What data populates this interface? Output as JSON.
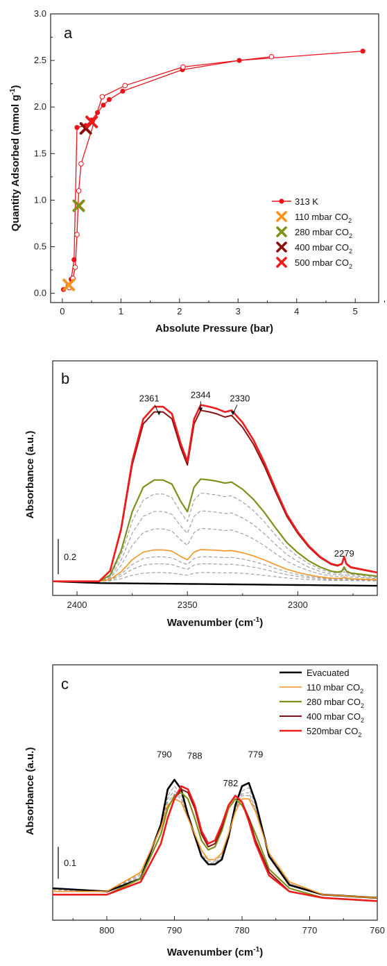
{
  "chart_data": [
    {
      "panel": "a",
      "type": "scatter",
      "xlabel": "Absolute Pressure (bar)",
      "ylabel_main": "Quantity Adsorbed (mmol g",
      "ylabel_sup": "-1",
      "ylabel_end": ")",
      "xlim": [
        -0.2,
        5.4
      ],
      "ylim": [
        -0.1,
        3.0
      ],
      "xticks": [
        "0",
        "1",
        "2",
        "3",
        "4",
        "5"
      ],
      "yticks": [
        "0.0",
        "0.5",
        "1.0",
        "1.5",
        "2.0",
        "2.5",
        "3.0"
      ],
      "legend_position": "bottom-right",
      "series": [
        {
          "name": "313 K",
          "role": "adsorption",
          "color": "#e8141b",
          "marker": "filled-circle",
          "x": [
            0.02,
            0.1,
            0.15,
            0.2,
            0.25,
            0.4,
            0.5,
            0.6,
            0.7,
            0.8,
            1.03,
            2.05,
            3.02,
            5.13
          ],
          "y": [
            0.04,
            0.08,
            0.15,
            0.36,
            1.78,
            1.8,
            1.86,
            1.94,
            2.02,
            2.08,
            2.17,
            2.4,
            2.5,
            2.6
          ]
        },
        {
          "role": "desorption",
          "color": "#e8141b",
          "marker": "open-circle",
          "x": [
            3.57,
            2.06,
            1.07,
            0.68,
            0.32,
            0.28,
            0.25,
            0.22,
            0.18,
            0.12
          ],
          "y": [
            2.54,
            2.43,
            2.23,
            2.11,
            1.39,
            1.1,
            0.63,
            0.28,
            0.16,
            0.06
          ]
        },
        {
          "name": "110 mbar CO2",
          "color": "#f7931e",
          "x": [
            0.11
          ],
          "y": [
            0.09
          ]
        },
        {
          "name": "280 mbar CO2",
          "color": "#7f8f1a",
          "x": [
            0.28
          ],
          "y": [
            0.94
          ]
        },
        {
          "name": "400 mbar CO2",
          "color": "#8b1010",
          "x": [
            0.4
          ],
          "y": [
            1.77
          ]
        },
        {
          "name": "500 mbar CO2",
          "color": "#ee1c1c",
          "x": [
            0.5
          ],
          "y": [
            1.84
          ]
        }
      ],
      "legend": [
        {
          "label": "313 K",
          "sub": "",
          "color": "#e8141b",
          "kind": "line-dot"
        },
        {
          "label": "110 mbar CO",
          "sub": "2",
          "color": "#f7931e",
          "kind": "cross"
        },
        {
          "label": "280 mbar CO",
          "sub": "2",
          "color": "#7f8f1a",
          "kind": "cross"
        },
        {
          "label": "400 mbar CO",
          "sub": "2",
          "color": "#8b1010",
          "kind": "cross"
        },
        {
          "label": "500 mbar CO",
          "sub": "2",
          "color": "#ee1c1c",
          "kind": "cross"
        }
      ]
    },
    {
      "panel": "b",
      "type": "line",
      "xlabel_main": "Wavenumber (cm",
      "xlabel_sup": "-1",
      "xlabel_end": ")",
      "ylabel": "Absorbance (a.u.)",
      "xlim": [
        2411,
        2264
      ],
      "ylim": [
        -0.08,
        1.25
      ],
      "xticks": [
        2400,
        2350,
        2300
      ],
      "scale_bar": {
        "value": 0.2,
        "label": "0.2"
      },
      "annotations": [
        {
          "text": "2361",
          "x": 2361,
          "y": 1.02
        },
        {
          "text": "2344",
          "x": 2344,
          "y": 1.04
        },
        {
          "text": "2330",
          "x": 2330,
          "y": 1.02
        },
        {
          "text": "2279",
          "x": 2279,
          "y": 0.14
        }
      ],
      "shape_x": [
        2411,
        2390,
        2385,
        2380,
        2375,
        2370,
        2365,
        2361,
        2357,
        2353,
        2350,
        2347,
        2344,
        2340,
        2337,
        2333,
        2330,
        2325,
        2320,
        2315,
        2310,
        2305,
        2300,
        2295,
        2290,
        2285,
        2282,
        2280,
        2279,
        2278,
        2276,
        2272,
        2268,
        2264
      ],
      "shape_y": [
        0.0,
        0.0,
        0.06,
        0.3,
        0.68,
        0.92,
        0.99,
        0.99,
        0.95,
        0.78,
        0.68,
        0.92,
        1.0,
        0.99,
        0.98,
        0.96,
        0.97,
        0.9,
        0.8,
        0.67,
        0.52,
        0.38,
        0.28,
        0.2,
        0.14,
        0.1,
        0.09,
        0.1,
        0.14,
        0.1,
        0.08,
        0.07,
        0.06,
        0.05
      ],
      "series": [
        {
          "name": "Evacuated",
          "color": "#000000",
          "width": 2.4,
          "scale": 0.0,
          "dashed": false
        },
        {
          "name": "110 mbar CO2",
          "color": "#f7931e",
          "width": 1.6,
          "scale": 0.18,
          "dashed": false
        },
        {
          "name": "280 mbar CO2",
          "color": "#7f8f1a",
          "width": 2.2,
          "scale": 0.58,
          "dashed": false
        },
        {
          "name": "400 mbar CO2",
          "color": "#8b1010",
          "width": 2.0,
          "scale": 0.97,
          "dashed": false
        },
        {
          "name": "520mbar CO2",
          "color": "#ee1c1c",
          "width": 2.6,
          "scale": 1.0,
          "dashed": false
        },
        {
          "color": "#999999",
          "width": 1.1,
          "scale": 0.05,
          "dashed": true
        },
        {
          "color": "#999999",
          "width": 1.1,
          "scale": 0.1,
          "dashed": true
        },
        {
          "color": "#999999",
          "width": 1.1,
          "scale": 0.14,
          "dashed": true
        },
        {
          "color": "#999999",
          "width": 1.1,
          "scale": 0.3,
          "dashed": true
        },
        {
          "color": "#999999",
          "width": 1.1,
          "scale": 0.4,
          "dashed": true
        },
        {
          "color": "#999999",
          "width": 1.1,
          "scale": 0.5,
          "dashed": true
        }
      ]
    },
    {
      "panel": "c",
      "type": "line",
      "xlabel_main": "Wavenumber (cm",
      "xlabel_sup": "-1",
      "xlabel_end": ")",
      "ylabel": "Absorbance (a.u.)",
      "xlim": [
        808,
        760
      ],
      "ylim": [
        -0.05,
        0.75
      ],
      "xticks": [
        800,
        790,
        780,
        770,
        760
      ],
      "scale_bar": {
        "value": 0.1,
        "label": "0.1"
      },
      "annotations": [
        {
          "text": "790",
          "x": 791.5,
          "y": 0.46
        },
        {
          "text": "788",
          "x": 787.0,
          "y": 0.455
        },
        {
          "text": "782",
          "x": 781.7,
          "y": 0.37
        },
        {
          "text": "779",
          "x": 778.0,
          "y": 0.46
        }
      ],
      "series": [
        {
          "name": "Evacuated",
          "color": "#000000",
          "width": 2.6,
          "x": [
            808,
            800,
            795,
            792,
            791,
            790,
            789,
            788,
            786,
            785,
            784,
            783,
            782,
            781,
            780,
            779,
            778,
            776,
            773,
            768,
            760
          ],
          "y": [
            0.05,
            0.04,
            0.08,
            0.25,
            0.36,
            0.39,
            0.36,
            0.28,
            0.15,
            0.125,
            0.125,
            0.14,
            0.21,
            0.31,
            0.37,
            0.38,
            0.32,
            0.15,
            0.06,
            0.03,
            0.02
          ]
        },
        {
          "name": "110 mbar CO2",
          "color": "#f7931e",
          "width": 1.6,
          "x": [
            808,
            800,
            795,
            792,
            791,
            790,
            789,
            788,
            786,
            785,
            784,
            783,
            782,
            781,
            780,
            779,
            778,
            776,
            773,
            768,
            760
          ],
          "y": [
            0.04,
            0.04,
            0.1,
            0.24,
            0.31,
            0.33,
            0.32,
            0.27,
            0.17,
            0.14,
            0.14,
            0.16,
            0.22,
            0.29,
            0.33,
            0.33,
            0.29,
            0.16,
            0.07,
            0.03,
            0.02
          ]
        },
        {
          "name": "280 mbar CO2",
          "color": "#7f8f1a",
          "width": 2.2,
          "x": [
            808,
            800,
            795,
            792,
            791,
            790,
            789,
            788,
            787,
            786,
            785,
            784,
            783,
            782,
            781,
            780,
            779,
            778,
            776,
            773,
            768,
            760
          ],
          "y": [
            0.03,
            0.03,
            0.08,
            0.22,
            0.3,
            0.34,
            0.35,
            0.33,
            0.27,
            0.2,
            0.17,
            0.18,
            0.23,
            0.3,
            0.33,
            0.31,
            0.27,
            0.22,
            0.11,
            0.05,
            0.02,
            0.01
          ]
        },
        {
          "name": "400 mbar CO2",
          "color": "#8b1010",
          "width": 2.0,
          "x": [
            808,
            800,
            795,
            792,
            791,
            790,
            789,
            788,
            787,
            786,
            785,
            784,
            783,
            782,
            781,
            780,
            779,
            778,
            776,
            773,
            768,
            760
          ],
          "y": [
            0.03,
            0.03,
            0.07,
            0.19,
            0.27,
            0.33,
            0.36,
            0.35,
            0.3,
            0.22,
            0.18,
            0.19,
            0.24,
            0.31,
            0.34,
            0.32,
            0.27,
            0.2,
            0.1,
            0.04,
            0.02,
            0.01
          ]
        },
        {
          "name": "520mbar CO2",
          "color": "#ee1c1c",
          "width": 2.6,
          "x": [
            808,
            800,
            795,
            792,
            791,
            790,
            789,
            788,
            787,
            786,
            785,
            784,
            783,
            782,
            781,
            780,
            779,
            778,
            776,
            773,
            768,
            760
          ],
          "y": [
            0.03,
            0.03,
            0.07,
            0.19,
            0.27,
            0.33,
            0.37,
            0.36,
            0.31,
            0.23,
            0.19,
            0.2,
            0.25,
            0.31,
            0.34,
            0.32,
            0.26,
            0.19,
            0.09,
            0.04,
            0.02,
            0.01
          ]
        },
        {
          "color": "#999999",
          "width": 1.1,
          "dashed": true,
          "x": [
            808,
            800,
            795,
            792,
            791,
            790,
            789,
            788,
            786,
            785,
            784,
            783,
            782,
            781,
            780,
            779,
            778,
            776,
            773,
            768,
            760
          ],
          "y": [
            0.045,
            0.04,
            0.085,
            0.245,
            0.34,
            0.37,
            0.345,
            0.275,
            0.155,
            0.125,
            0.125,
            0.145,
            0.21,
            0.3,
            0.355,
            0.365,
            0.31,
            0.15,
            0.06,
            0.03,
            0.02
          ]
        },
        {
          "color": "#999999",
          "width": 1.1,
          "dashed": true,
          "x": [
            808,
            800,
            795,
            792,
            791,
            790,
            789,
            788,
            786,
            785,
            784,
            783,
            782,
            781,
            780,
            779,
            778,
            776,
            773,
            768,
            760
          ],
          "y": [
            0.045,
            0.04,
            0.09,
            0.24,
            0.33,
            0.355,
            0.335,
            0.27,
            0.16,
            0.13,
            0.13,
            0.15,
            0.215,
            0.3,
            0.345,
            0.35,
            0.3,
            0.155,
            0.065,
            0.03,
            0.02
          ]
        },
        {
          "color": "#999999",
          "width": 1.1,
          "dashed": true,
          "x": [
            808,
            800,
            795,
            792,
            791,
            790,
            789,
            788,
            786,
            785,
            784,
            783,
            782,
            781,
            780,
            779,
            778,
            776,
            773,
            768,
            760
          ],
          "y": [
            0.04,
            0.04,
            0.095,
            0.24,
            0.32,
            0.345,
            0.33,
            0.275,
            0.17,
            0.135,
            0.135,
            0.155,
            0.22,
            0.295,
            0.34,
            0.34,
            0.295,
            0.16,
            0.065,
            0.03,
            0.02
          ]
        }
      ],
      "legend": [
        {
          "label": "Evacuated",
          "sub": "",
          "color": "#000000",
          "width": 2.6
        },
        {
          "label": "110 mbar CO",
          "sub": "2",
          "color": "#f7931e",
          "width": 1.6
        },
        {
          "label": "280 mbar CO",
          "sub": "2",
          "color": "#7f8f1a",
          "width": 2.2
        },
        {
          "label": "400 mbar CO",
          "sub": "2",
          "color": "#8b1010",
          "width": 2.0
        },
        {
          "label": "520mbar CO",
          "sub": "2",
          "color": "#ee1c1c",
          "width": 2.6
        }
      ]
    }
  ]
}
